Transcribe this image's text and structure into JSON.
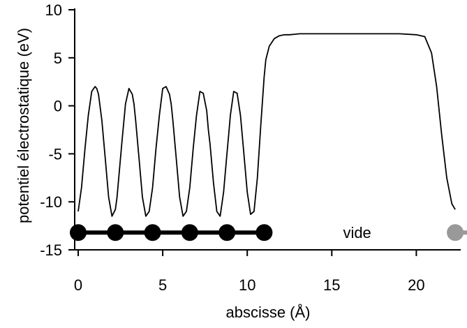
{
  "chart_data": {
    "type": "line",
    "title": "",
    "xlabel": "abscisse (Å)",
    "ylabel": "potentiel électrostatique (eV)",
    "xlim": [
      -0.2,
      22.6
    ],
    "ylim": [
      -15,
      10
    ],
    "xticks": [
      0,
      5,
      10,
      15,
      20
    ],
    "yticks": [
      -15,
      -10,
      -5,
      0,
      5,
      10
    ],
    "grid": false,
    "series": [
      {
        "values_description_free": true,
        "x": [
          0.0,
          0.2,
          0.4,
          0.6,
          0.8,
          1.0,
          1.1,
          1.2,
          1.4,
          1.6,
          1.8,
          2.0,
          2.2,
          2.3,
          2.4,
          2.6,
          2.8,
          3.0,
          3.2,
          3.3,
          3.4,
          3.6,
          3.8,
          4.0,
          4.2,
          4.4,
          4.5,
          4.6,
          4.8,
          5.0,
          5.2,
          5.4,
          5.5,
          5.6,
          5.8,
          6.0,
          6.2,
          6.4,
          6.6,
          6.7,
          6.8,
          7.0,
          7.2,
          7.4,
          7.6,
          7.7,
          7.8,
          8.0,
          8.2,
          8.4,
          8.6,
          8.8,
          8.9,
          9.0,
          9.2,
          9.4,
          9.6,
          9.8,
          9.9,
          10.0,
          10.2,
          10.4,
          10.6,
          10.8,
          11.0,
          11.1,
          11.3,
          11.6,
          11.9,
          12.2,
          12.5,
          12.8,
          13.1,
          13.5,
          14.0,
          15.0,
          16.0,
          17.0,
          18.0,
          19.0,
          20.0,
          20.5,
          20.9,
          21.2,
          21.5,
          21.8,
          22.1,
          22.3
        ],
        "y": [
          -11.0,
          -8.5,
          -4.5,
          -1.0,
          1.5,
          2.0,
          1.8,
          1.2,
          -1.5,
          -5.5,
          -9.5,
          -11.5,
          -10.8,
          -9.5,
          -7.5,
          -3.5,
          0.2,
          1.8,
          1.2,
          0.2,
          -1.5,
          -5.5,
          -9.5,
          -11.5,
          -11.0,
          -8.5,
          -6.5,
          -4.5,
          -1.0,
          1.8,
          2.0,
          1.2,
          0.2,
          -1.5,
          -5.5,
          -9.5,
          -11.5,
          -11.0,
          -8.5,
          -6.5,
          -4.5,
          -1.0,
          1.5,
          1.3,
          -0.5,
          -2.5,
          -4.0,
          -8.0,
          -11.0,
          -11.5,
          -9.0,
          -5.0,
          -3.0,
          -1.0,
          1.5,
          1.3,
          -1.0,
          -5.0,
          -7.0,
          -9.0,
          -11.3,
          -11.0,
          -7.5,
          -2.0,
          3.0,
          4.8,
          6.2,
          7.0,
          7.3,
          7.4,
          7.4,
          7.45,
          7.5,
          7.5,
          7.5,
          7.5,
          7.5,
          7.5,
          7.5,
          7.5,
          7.4,
          7.2,
          5.5,
          2.0,
          -3.0,
          -7.5,
          -10.2,
          -10.8
        ]
      }
    ],
    "markers": {
      "atoms_x": [
        0,
        2.2,
        4.4,
        6.6,
        8.8,
        11.0
      ],
      "atom_y": -13.2,
      "atom_color": "#000000",
      "chain_color": "#000000",
      "vacuum_atom_x": 22.3,
      "vacuum_atom_color": "#999999"
    },
    "annotations": [
      {
        "text": "vide",
        "x": 16.5,
        "y": -13.2
      }
    ]
  }
}
